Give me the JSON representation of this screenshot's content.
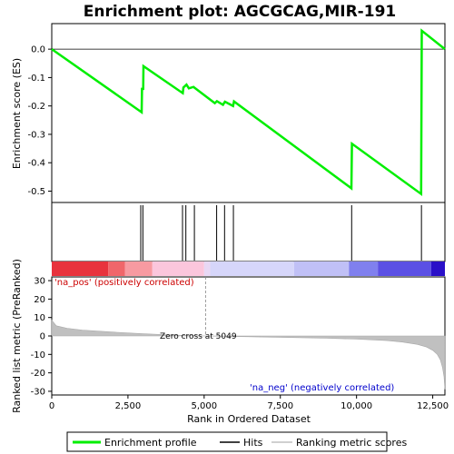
{
  "chart_data": {
    "type": "line",
    "title": "Enrichment plot: AGCGCAG,MIR-191",
    "n_genes": 12900,
    "enrichment_panel": {
      "ylabel": "Enrichment score (ES)",
      "ylim": [
        -0.54,
        0.09
      ],
      "yticks": [
        0.0,
        -0.1,
        -0.2,
        -0.3,
        -0.4,
        -0.5
      ],
      "ytick_labels": [
        "0.0",
        "-0.1",
        "-0.2",
        "-0.3",
        "-0.4",
        "-0.5"
      ],
      "series_name": "Enrichment profile",
      "color": "#00ee00",
      "points": [
        [
          0,
          0.0
        ],
        [
          2950,
          -0.222
        ],
        [
          2960,
          -0.14
        ],
        [
          3000,
          -0.14
        ],
        [
          3010,
          -0.06
        ],
        [
          4300,
          -0.155
        ],
        [
          4320,
          -0.135
        ],
        [
          4420,
          -0.125
        ],
        [
          4500,
          -0.138
        ],
        [
          4650,
          -0.133
        ],
        [
          5350,
          -0.19
        ],
        [
          5420,
          -0.183
        ],
        [
          5620,
          -0.196
        ],
        [
          5680,
          -0.185
        ],
        [
          5950,
          -0.2
        ],
        [
          5980,
          -0.184
        ],
        [
          9830,
          -0.49
        ],
        [
          9850,
          -0.333
        ],
        [
          12120,
          -0.51
        ],
        [
          12140,
          0.065
        ],
        [
          12900,
          0.0
        ]
      ]
    },
    "hits": [
      2920,
      2990,
      4290,
      4400,
      4680,
      5410,
      5670,
      5960,
      9840,
      12130
    ],
    "rank_bar": {
      "colors": [
        "#e8333d",
        "#f0666a",
        "#f79aa1",
        "#fbc6dc",
        "#e8d8f4",
        "#d6d6fa",
        "#c0c0f6",
        "#8080ee",
        "#5b50e4",
        "#2a10c8"
      ],
      "breaks": [
        0,
        1850,
        2400,
        3300,
        5000,
        5200,
        7950,
        9750,
        10700,
        12450,
        12900
      ]
    },
    "metric_panel": {
      "ylabel": "Ranked list metric (PreRanked)",
      "xlabel": "Rank in Ordered Dataset",
      "ylim": [
        -32,
        32
      ],
      "yticks": [
        30,
        20,
        10,
        0,
        -10,
        -20,
        -30
      ],
      "ytick_labels": [
        "30",
        "20",
        "10",
        "0",
        "-10",
        "-20",
        "-30"
      ],
      "xticks": [
        0,
        2500,
        5000,
        7500,
        10000,
        12500
      ],
      "xtick_labels": [
        "0",
        "2,500",
        "5,000",
        "7,500",
        "10,000",
        "12,500"
      ],
      "zero_cross": 5049,
      "zero_cross_label": "Zero cross at 5049",
      "pos_label": "'na_pos' (positively correlated)",
      "neg_label": "'na_neg' (negatively correlated)",
      "curve": [
        [
          0,
          8.5
        ],
        [
          150,
          5.5
        ],
        [
          500,
          4.2
        ],
        [
          1000,
          3.2
        ],
        [
          2000,
          2.1
        ],
        [
          3000,
          1.2
        ],
        [
          4000,
          0.5
        ],
        [
          5049,
          0.0
        ],
        [
          6000,
          -0.3
        ],
        [
          7000,
          -0.6
        ],
        [
          8000,
          -0.9
        ],
        [
          9000,
          -1.2
        ],
        [
          10000,
          -1.7
        ],
        [
          11000,
          -2.5
        ],
        [
          11500,
          -3.3
        ],
        [
          12000,
          -4.6
        ],
        [
          12300,
          -6.0
        ],
        [
          12500,
          -7.8
        ],
        [
          12650,
          -10.0
        ],
        [
          12750,
          -13.0
        ],
        [
          12820,
          -17.0
        ],
        [
          12870,
          -22.0
        ],
        [
          12900,
          -29.0
        ]
      ]
    },
    "legend": {
      "entries": [
        "Enrichment profile",
        "Hits",
        "Ranking metric scores"
      ],
      "colors": [
        "#00ee00",
        "#000000",
        "#c0c0c0"
      ]
    }
  }
}
